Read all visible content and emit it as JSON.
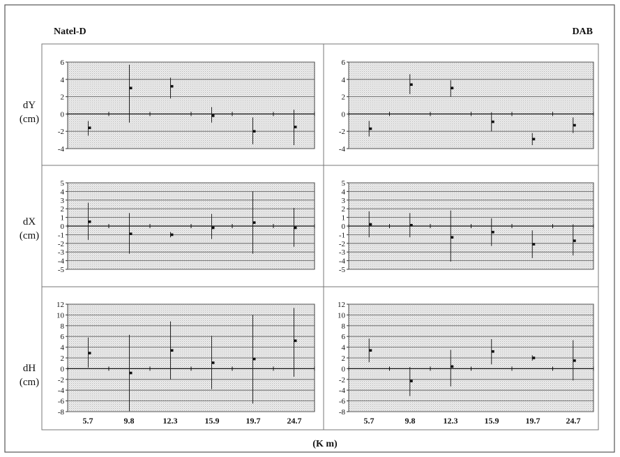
{
  "figure": {
    "left_title": "Natel-D",
    "right_title": "DAB",
    "x_axis_label": "(K m)",
    "row_labels": [
      {
        "line1": "dY",
        "line2": "(cm)"
      },
      {
        "line1": "dX",
        "line2": "(cm)"
      },
      {
        "line1": "dH",
        "line2": "(cm)"
      }
    ],
    "x_tick_labels": [
      "5.7",
      "9.8",
      "12.3",
      "15.9",
      "19.7",
      "24.7"
    ]
  },
  "chart_data": [
    {
      "type": "scatter",
      "column": "Natel-D",
      "ylabel": "dY (cm)",
      "ylim": [
        -4,
        6
      ],
      "yticks": [
        -4,
        -2,
        0,
        2,
        4,
        6
      ],
      "x": [
        "5.7",
        "9.8",
        "12.3",
        "15.9",
        "19.7",
        "24.7"
      ],
      "values": [
        -1.6,
        3.0,
        3.2,
        -0.2,
        -2.0,
        -1.5
      ],
      "error_low": [
        -2.5,
        -1.0,
        1.8,
        -1.0,
        -3.5,
        -3.6
      ],
      "error_high": [
        -0.8,
        5.7,
        4.2,
        0.8,
        -0.4,
        0.5
      ]
    },
    {
      "type": "scatter",
      "column": "DAB",
      "ylabel": "dY (cm)",
      "ylim": [
        -4,
        6
      ],
      "yticks": [
        -4,
        -2,
        0,
        2,
        4,
        6
      ],
      "x": [
        "5.7",
        "9.8",
        "12.3",
        "15.9",
        "19.7",
        "24.7"
      ],
      "values": [
        -1.7,
        3.4,
        3.0,
        -0.9,
        -2.9,
        -1.3
      ],
      "error_low": [
        -2.6,
        2.3,
        2.0,
        -2.0,
        -3.6,
        -2.2
      ],
      "error_high": [
        -0.8,
        4.6,
        3.9,
        0.2,
        -2.2,
        -0.4
      ]
    },
    {
      "type": "scatter",
      "column": "Natel-D",
      "ylabel": "dX (cm)",
      "ylim": [
        -5,
        5
      ],
      "yticks": [
        -5,
        -4,
        -3,
        -2,
        -1,
        0,
        1,
        2,
        3,
        4,
        5
      ],
      "x": [
        "5.7",
        "9.8",
        "12.3",
        "15.9",
        "19.7",
        "24.7"
      ],
      "values": [
        0.5,
        -0.9,
        -1.0,
        -0.2,
        0.4,
        -0.2
      ],
      "error_low": [
        -1.6,
        -3.2,
        -1.3,
        -1.5,
        -3.2,
        -2.4
      ],
      "error_high": [
        2.7,
        1.5,
        -0.7,
        1.4,
        4.0,
        2.1
      ]
    },
    {
      "type": "scatter",
      "column": "DAB",
      "ylabel": "dX (cm)",
      "ylim": [
        -5,
        5
      ],
      "yticks": [
        -5,
        -4,
        -3,
        -2,
        -1,
        0,
        1,
        2,
        3,
        4,
        5
      ],
      "x": [
        "5.7",
        "9.8",
        "12.3",
        "15.9",
        "19.7",
        "24.7"
      ],
      "values": [
        0.2,
        0.1,
        -1.3,
        -0.7,
        -2.1,
        -1.7
      ],
      "error_low": [
        -1.3,
        -1.3,
        -4.1,
        -2.3,
        -3.7,
        -3.4
      ],
      "error_high": [
        1.7,
        1.5,
        1.8,
        0.9,
        -0.5,
        0.2
      ]
    },
    {
      "type": "scatter",
      "column": "Natel-D",
      "ylabel": "dH (cm)",
      "ylim": [
        -8,
        12
      ],
      "yticks": [
        -8,
        -6,
        -4,
        -2,
        0,
        2,
        4,
        6,
        8,
        10,
        12
      ],
      "x": [
        "5.7",
        "9.8",
        "12.3",
        "15.9",
        "19.7",
        "24.7"
      ],
      "values": [
        2.9,
        -0.8,
        3.4,
        1.1,
        1.8,
        5.2
      ],
      "error_low": [
        0.2,
        -7.9,
        -2.0,
        -3.8,
        -6.5,
        -1.5
      ],
      "error_high": [
        5.8,
        6.3,
        8.8,
        6.1,
        10.0,
        11.3
      ]
    },
    {
      "type": "scatter",
      "column": "DAB",
      "ylabel": "dH (cm)",
      "ylim": [
        -8,
        12
      ],
      "yticks": [
        -8,
        -6,
        -4,
        -2,
        0,
        2,
        4,
        6,
        8,
        10,
        12
      ],
      "x": [
        "5.7",
        "9.8",
        "12.3",
        "15.9",
        "19.7",
        "24.7"
      ],
      "values": [
        3.4,
        -2.3,
        0.4,
        3.2,
        2.0,
        1.5
      ],
      "error_low": [
        1.2,
        -5.1,
        -3.3,
        0.8,
        1.5,
        -2.2
      ],
      "error_high": [
        5.6,
        0.3,
        3.5,
        5.5,
        2.5,
        5.3
      ]
    }
  ]
}
